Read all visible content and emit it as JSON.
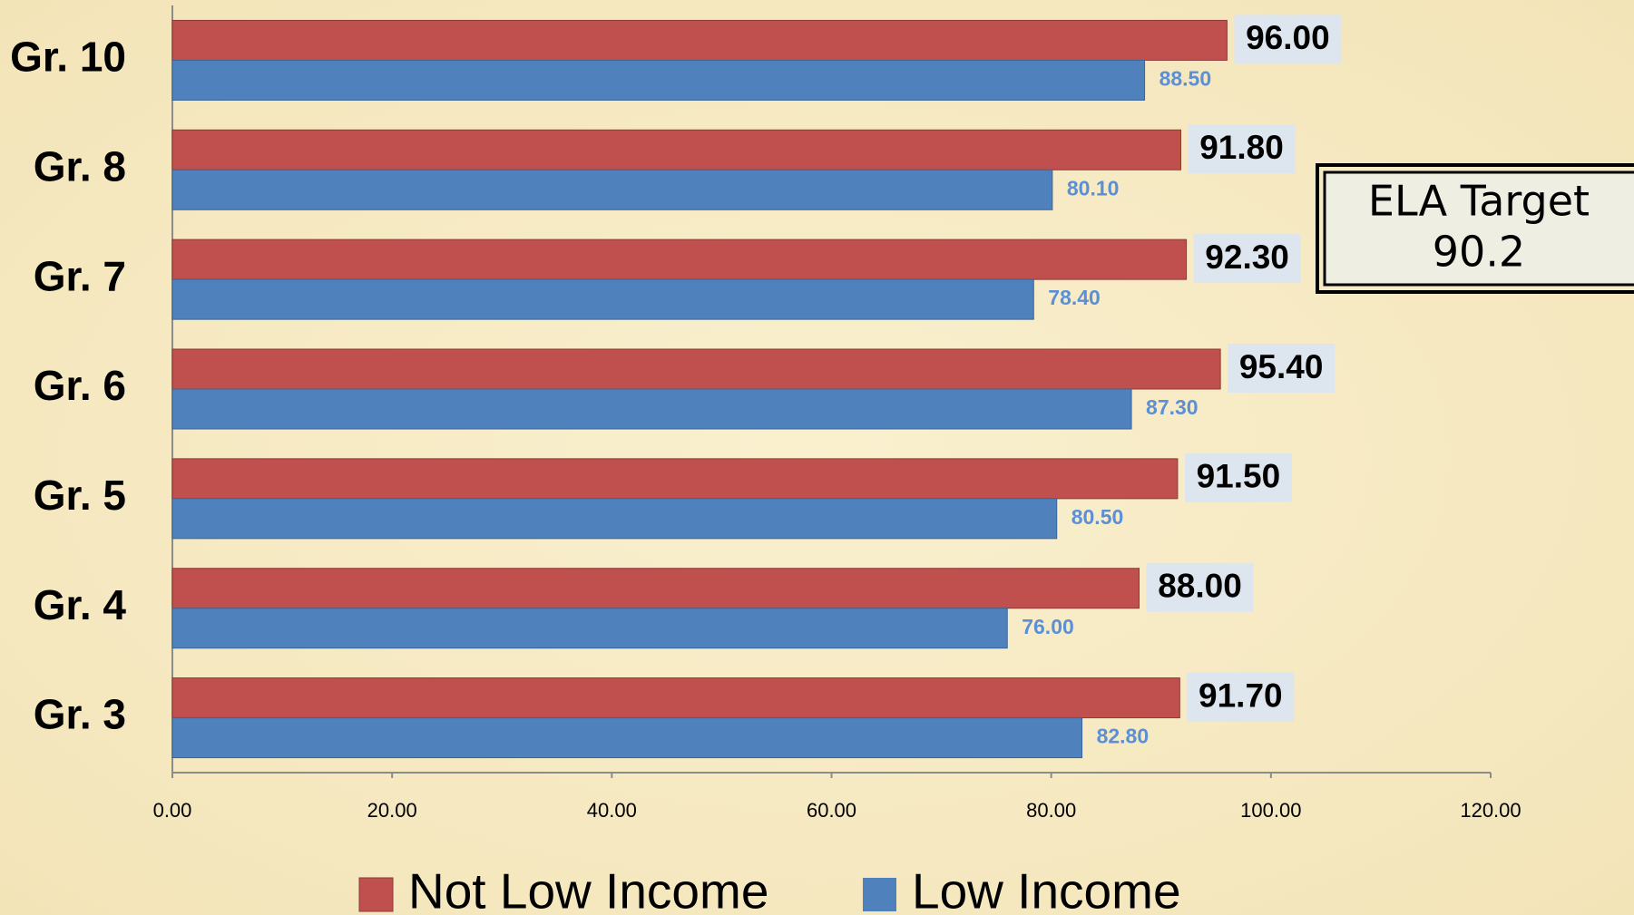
{
  "chart_data": {
    "type": "hbar",
    "categories": [
      "Gr. 10",
      "Gr. 8",
      "Gr. 7",
      "Gr. 6",
      "Gr. 5",
      "Gr. 4",
      "Gr. 3"
    ],
    "series": [
      {
        "name": "Not Low Income",
        "color": "#c0504d",
        "values": [
          96,
          91.8,
          92.3,
          95.4,
          91.5,
          88,
          91.7
        ],
        "value_labels": [
          "96.00",
          "91.80",
          "92.30",
          "95.40",
          "91.50",
          "88.00",
          "91.70"
        ]
      },
      {
        "name": "Low Income",
        "color": "#4f81bd",
        "values": [
          88.5,
          80.1,
          78.4,
          87.3,
          80.5,
          76,
          82.8
        ],
        "value_labels": [
          "88.50",
          "80.10",
          "78.40",
          "87.30",
          "80.50",
          "76.00",
          "82.80"
        ]
      }
    ],
    "xlim": [
      0,
      120
    ],
    "xticks": [
      {
        "value": 0,
        "label": "0.00"
      },
      {
        "value": 20,
        "label": "20.00"
      },
      {
        "value": 40,
        "label": "40.00"
      },
      {
        "value": 60,
        "label": "60.00"
      },
      {
        "value": 80,
        "label": "80.00"
      },
      {
        "value": 100,
        "label": "100.00"
      },
      {
        "value": 120,
        "label": "120.00"
      }
    ],
    "annotation": [
      "ELA Target",
      "90.2"
    ],
    "legend": "bottom"
  }
}
